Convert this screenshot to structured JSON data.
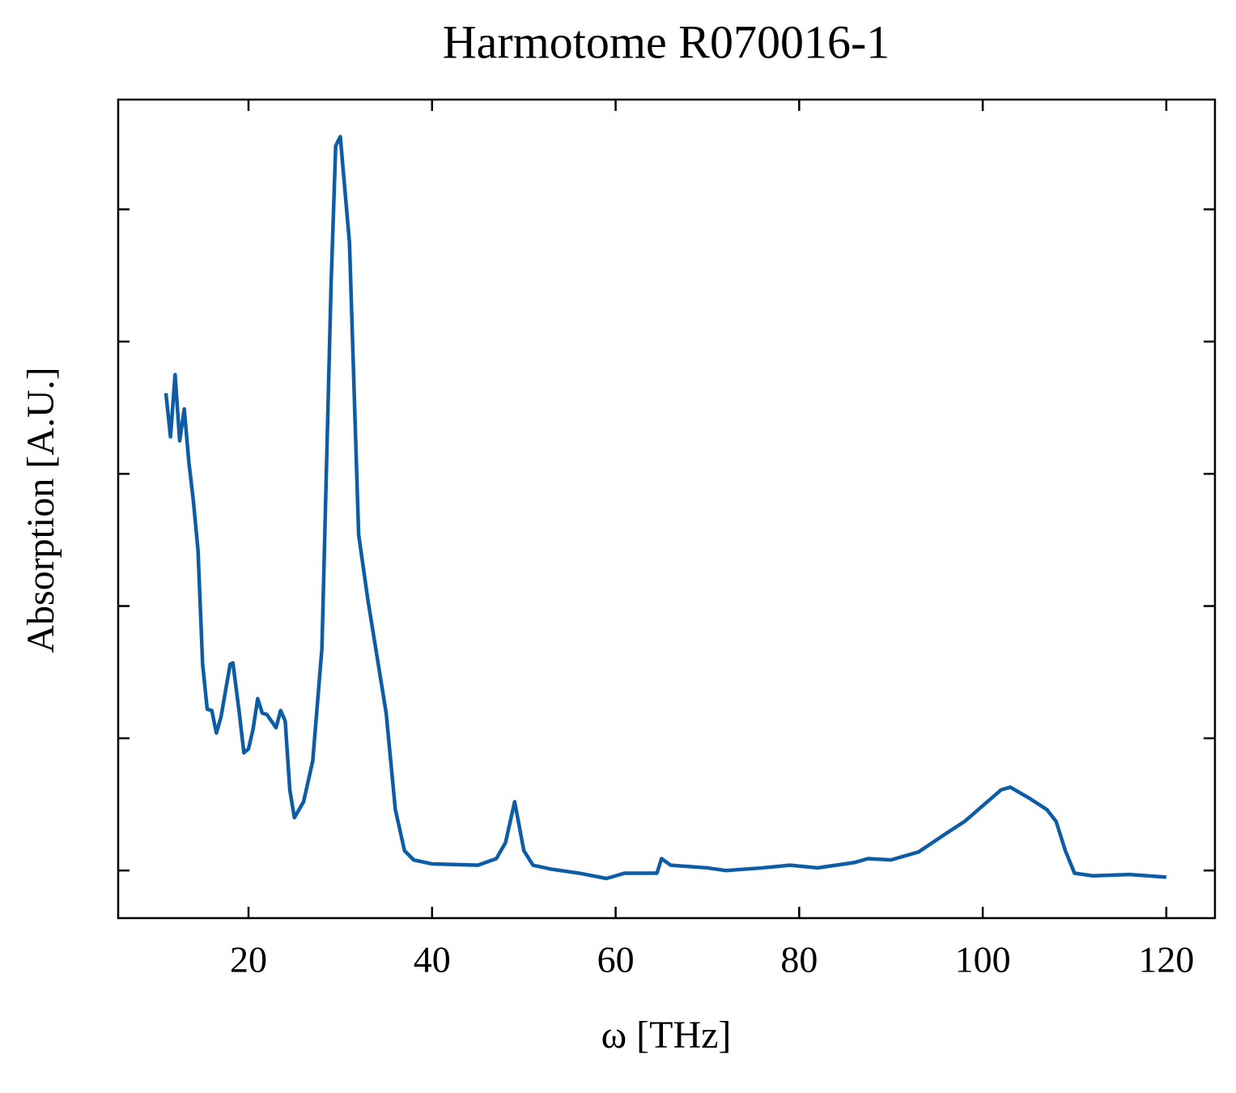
{
  "chart_data": {
    "type": "line",
    "title": "Harmotome R070016-1",
    "x_label": "ω [THz]",
    "y_label": "Absorption [A.U.]",
    "x": [
      11,
      11.5,
      12,
      12.5,
      13,
      13.5,
      14,
      14.5,
      15,
      15.5,
      16,
      16.5,
      17,
      18,
      18.3,
      19,
      19.5,
      20,
      20.5,
      21,
      21.5,
      22,
      23,
      23.5,
      24,
      24.5,
      25,
      26,
      27,
      28,
      29,
      29.5,
      30,
      31,
      32,
      33,
      34,
      35,
      36,
      37,
      38,
      40,
      45,
      47,
      48,
      49,
      50,
      51,
      53,
      56,
      59,
      61,
      63,
      64.5,
      65,
      66,
      70,
      72,
      76,
      79,
      82,
      86,
      87.5,
      90,
      93,
      96,
      98,
      100,
      102,
      103,
      105,
      107,
      108,
      109,
      110,
      112,
      116,
      120
    ],
    "series": [
      {
        "name": "Harmotome R070016-1",
        "color": "#0c5da5",
        "values": [
          3.61,
          3.28,
          3.75,
          3.25,
          3.49,
          3.09,
          2.79,
          2.42,
          1.56,
          1.22,
          1.21,
          1.04,
          1.16,
          1.56,
          1.57,
          1.19,
          0.89,
          0.92,
          1.07,
          1.3,
          1.19,
          1.18,
          1.08,
          1.21,
          1.13,
          0.61,
          0.4,
          0.52,
          0.83,
          1.68,
          4.44,
          5.48,
          5.55,
          4.75,
          2.54,
          2.05,
          1.62,
          1.19,
          0.46,
          0.15,
          0.08,
          0.05,
          0.04,
          0.09,
          0.21,
          0.52,
          0.15,
          0.04,
          0.01,
          -0.02,
          -0.06,
          -0.02,
          -0.02,
          -0.02,
          0.09,
          0.04,
          0.02,
          0,
          0.02,
          0.04,
          0.02,
          0.06,
          0.09,
          0.08,
          0.14,
          0.28,
          0.37,
          0.49,
          0.61,
          0.63,
          0.55,
          0.46,
          0.37,
          0.15,
          -0.02,
          -0.04,
          -0.03,
          -0.05
        ]
      }
    ],
    "xlim": [
      5.8,
      125.3
    ],
    "xticks": [
      20,
      40,
      60,
      80,
      100,
      120
    ],
    "ylim": [
      -0.36,
      5.83
    ],
    "yticks": [
      0,
      1,
      2,
      3,
      4,
      5
    ],
    "show_ytick_labels": false
  }
}
